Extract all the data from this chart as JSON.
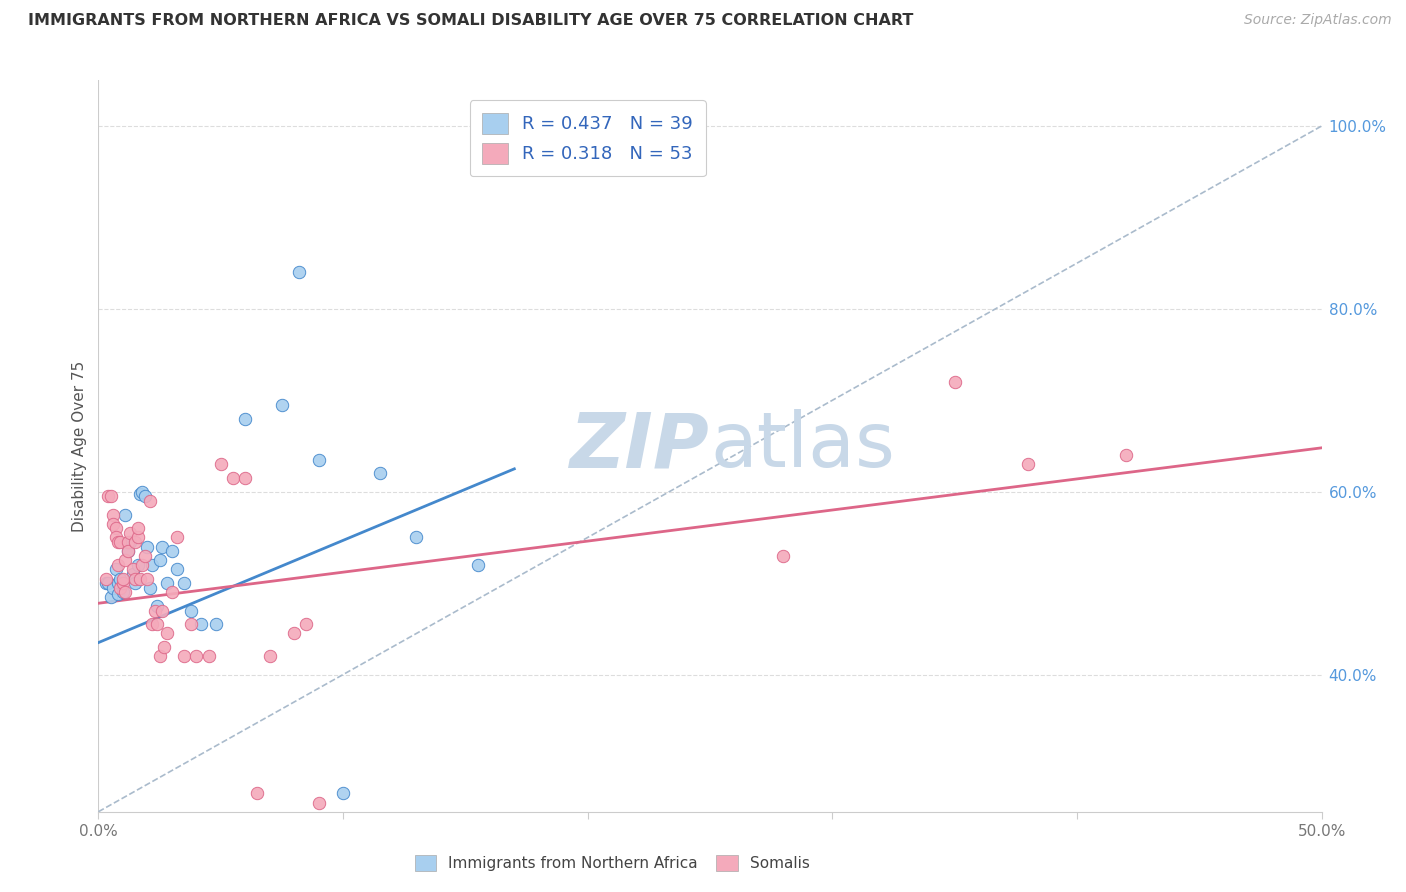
{
  "title": "IMMIGRANTS FROM NORTHERN AFRICA VS SOMALI DISABILITY AGE OVER 75 CORRELATION CHART",
  "source": "Source: ZipAtlas.com",
  "ylabel": "Disability Age Over 75",
  "right_yticks": [
    "40.0%",
    "60.0%",
    "80.0%",
    "100.0%"
  ],
  "right_ytick_vals": [
    0.4,
    0.6,
    0.8,
    1.0
  ],
  "xlim": [
    0.0,
    0.5
  ],
  "ylim": [
    0.25,
    1.05
  ],
  "series1_color": "#A8CFEF",
  "series2_color": "#F4AABB",
  "trendline1_color": "#4488CC",
  "trendline2_color": "#DD6688",
  "dashed_line_color": "#AABBCC",
  "watermark_color": "#C8D8E8",
  "blue_scatter_x": [
    0.003,
    0.004,
    0.005,
    0.006,
    0.007,
    0.008,
    0.008,
    0.009,
    0.01,
    0.011,
    0.012,
    0.013,
    0.014,
    0.015,
    0.016,
    0.017,
    0.018,
    0.019,
    0.02,
    0.021,
    0.022,
    0.024,
    0.025,
    0.026,
    0.028,
    0.03,
    0.032,
    0.035,
    0.038,
    0.042,
    0.048,
    0.06,
    0.075,
    0.082,
    0.09,
    0.1,
    0.115,
    0.13,
    0.155
  ],
  "blue_scatter_y": [
    0.5,
    0.5,
    0.485,
    0.495,
    0.515,
    0.5,
    0.488,
    0.505,
    0.49,
    0.575,
    0.535,
    0.545,
    0.51,
    0.5,
    0.52,
    0.598,
    0.6,
    0.595,
    0.54,
    0.495,
    0.52,
    0.475,
    0.525,
    0.54,
    0.5,
    0.535,
    0.515,
    0.5,
    0.47,
    0.455,
    0.455,
    0.68,
    0.695,
    0.84,
    0.635,
    0.27,
    0.62,
    0.55,
    0.52
  ],
  "pink_scatter_x": [
    0.003,
    0.004,
    0.005,
    0.006,
    0.006,
    0.007,
    0.007,
    0.008,
    0.008,
    0.009,
    0.009,
    0.01,
    0.01,
    0.011,
    0.011,
    0.012,
    0.012,
    0.013,
    0.014,
    0.015,
    0.015,
    0.016,
    0.016,
    0.017,
    0.018,
    0.019,
    0.02,
    0.021,
    0.022,
    0.023,
    0.024,
    0.025,
    0.026,
    0.027,
    0.028,
    0.03,
    0.032,
    0.035,
    0.038,
    0.04,
    0.045,
    0.05,
    0.055,
    0.06,
    0.065,
    0.07,
    0.08,
    0.085,
    0.09,
    0.28,
    0.35,
    0.38,
    0.42
  ],
  "pink_scatter_y": [
    0.505,
    0.595,
    0.595,
    0.575,
    0.565,
    0.56,
    0.55,
    0.52,
    0.545,
    0.495,
    0.545,
    0.5,
    0.505,
    0.525,
    0.49,
    0.545,
    0.535,
    0.555,
    0.515,
    0.505,
    0.545,
    0.55,
    0.56,
    0.505,
    0.52,
    0.53,
    0.505,
    0.59,
    0.455,
    0.47,
    0.455,
    0.42,
    0.47,
    0.43,
    0.445,
    0.49,
    0.55,
    0.42,
    0.455,
    0.42,
    0.42,
    0.63,
    0.615,
    0.615,
    0.27,
    0.42,
    0.445,
    0.455,
    0.26,
    0.53,
    0.72,
    0.63,
    0.64
  ],
  "trendline1_x": [
    0.0,
    0.17
  ],
  "trendline1_y": [
    0.435,
    0.625
  ],
  "trendline2_x": [
    0.0,
    0.5
  ],
  "trendline2_y": [
    0.478,
    0.648
  ],
  "dashed_line_x": [
    0.0,
    0.5
  ],
  "dashed_line_y": [
    0.25,
    1.0
  ],
  "legend1_label": "R = 0.437   N = 39",
  "legend2_label": "R = 0.318   N = 53",
  "bottom_legend1": "Immigrants from Northern Africa",
  "bottom_legend2": "Somalis"
}
